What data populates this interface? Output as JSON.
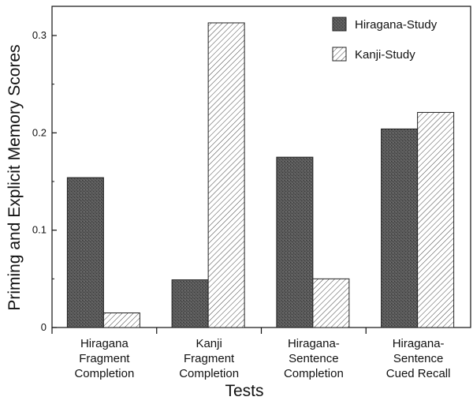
{
  "chart_data": {
    "type": "bar",
    "title": "",
    "xlabel": "Tests",
    "ylabel": "Priming and Explicit Memory Scores",
    "ylim": [
      0,
      0.33
    ],
    "yticks": [
      0,
      0.1,
      0.2,
      0.3
    ],
    "ytick_labels": [
      "0",
      "0.1",
      "0.2",
      "0.3"
    ],
    "grid": false,
    "legend_position": "top-right",
    "categories": [
      [
        "Hiragana",
        "Fragment",
        "Completion"
      ],
      [
        "Kanji",
        "Fragment",
        "Completion"
      ],
      [
        "Hiragana-",
        "Sentence",
        "Completion"
      ],
      [
        "Hiragana-",
        "Sentence",
        "Cued Recall"
      ]
    ],
    "series": [
      {
        "name": "Hiragana-Study",
        "values": [
          0.154,
          0.049,
          0.175,
          0.204
        ],
        "color": "#555555",
        "pattern": "dark-stipple"
      },
      {
        "name": "Kanji-Study",
        "values": [
          0.015,
          0.313,
          0.05,
          0.221
        ],
        "color": "#ffffff",
        "pattern": "diagonal-hatch"
      }
    ]
  }
}
